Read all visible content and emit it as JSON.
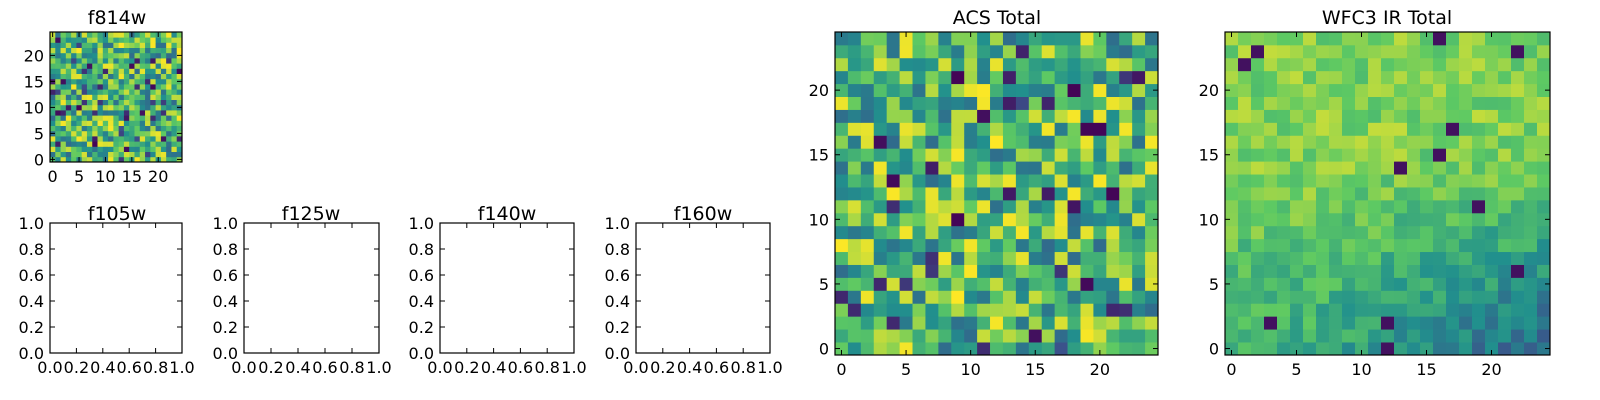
{
  "colormap": [
    "#440154",
    "#3b528b",
    "#21908d",
    "#5dc963",
    "#fde725"
  ],
  "chart_data": [
    {
      "type": "heatmap",
      "title": "f814w",
      "grid_size": 25,
      "pattern": "noise",
      "seed": 814,
      "xlim": [
        -0.5,
        24.5
      ],
      "ylim": [
        -0.5,
        24.5
      ],
      "xticks": [
        0,
        5,
        10,
        15,
        20
      ],
      "yticks": [
        0,
        5,
        10,
        15,
        20
      ],
      "grid": false
    },
    {
      "type": "heatmap",
      "title": "f105w",
      "empty": true,
      "xlim": [
        0,
        1
      ],
      "ylim": [
        0,
        1
      ],
      "xticks": [
        "0.0",
        "0.2",
        "0.4",
        "0.6",
        "0.8",
        "1.0"
      ],
      "yticks": [
        "0.0",
        "0.2",
        "0.4",
        "0.6",
        "0.8",
        "1.0"
      ],
      "grid": false
    },
    {
      "type": "heatmap",
      "title": "f125w",
      "empty": true,
      "xlim": [
        0,
        1
      ],
      "ylim": [
        0,
        1
      ],
      "xticks": [
        "0.0",
        "0.2",
        "0.4",
        "0.6",
        "0.8",
        "1.0"
      ],
      "yticks": [
        "0.0",
        "0.2",
        "0.4",
        "0.6",
        "0.8",
        "1.0"
      ],
      "grid": false
    },
    {
      "type": "heatmap",
      "title": "f140w",
      "empty": true,
      "xlim": [
        0,
        1
      ],
      "ylim": [
        0,
        1
      ],
      "xticks": [
        "0.0",
        "0.2",
        "0.4",
        "0.6",
        "0.8",
        "1.0"
      ],
      "yticks": [
        "0.0",
        "0.2",
        "0.4",
        "0.6",
        "0.8",
        "1.0"
      ],
      "grid": false
    },
    {
      "type": "heatmap",
      "title": "f160w",
      "empty": true,
      "xlim": [
        0,
        1
      ],
      "ylim": [
        0,
        1
      ],
      "xticks": [
        "0.0",
        "0.2",
        "0.4",
        "0.6",
        "0.8",
        "1.0"
      ],
      "yticks": [
        "0.0",
        "0.2",
        "0.4",
        "0.6",
        "0.8",
        "1.0"
      ],
      "grid": false
    },
    {
      "type": "heatmap",
      "title": "ACS Total",
      "grid_size": 25,
      "pattern": "noise",
      "seed": 1001,
      "xlim": [
        -0.5,
        24.5
      ],
      "ylim": [
        -0.5,
        24.5
      ],
      "xticks": [
        0,
        5,
        10,
        15,
        20
      ],
      "yticks": [
        0,
        5,
        10,
        15,
        20
      ],
      "grid": false
    },
    {
      "type": "heatmap",
      "title": "WFC3 IR Total",
      "grid_size": 25,
      "pattern": "gradient",
      "seed": 3003,
      "xlim": [
        -0.5,
        24.5
      ],
      "ylim": [
        -0.5,
        24.5
      ],
      "xticks": [
        0,
        5,
        10,
        15,
        20
      ],
      "yticks": [
        0,
        5,
        10,
        15,
        20
      ],
      "grid": false
    }
  ]
}
